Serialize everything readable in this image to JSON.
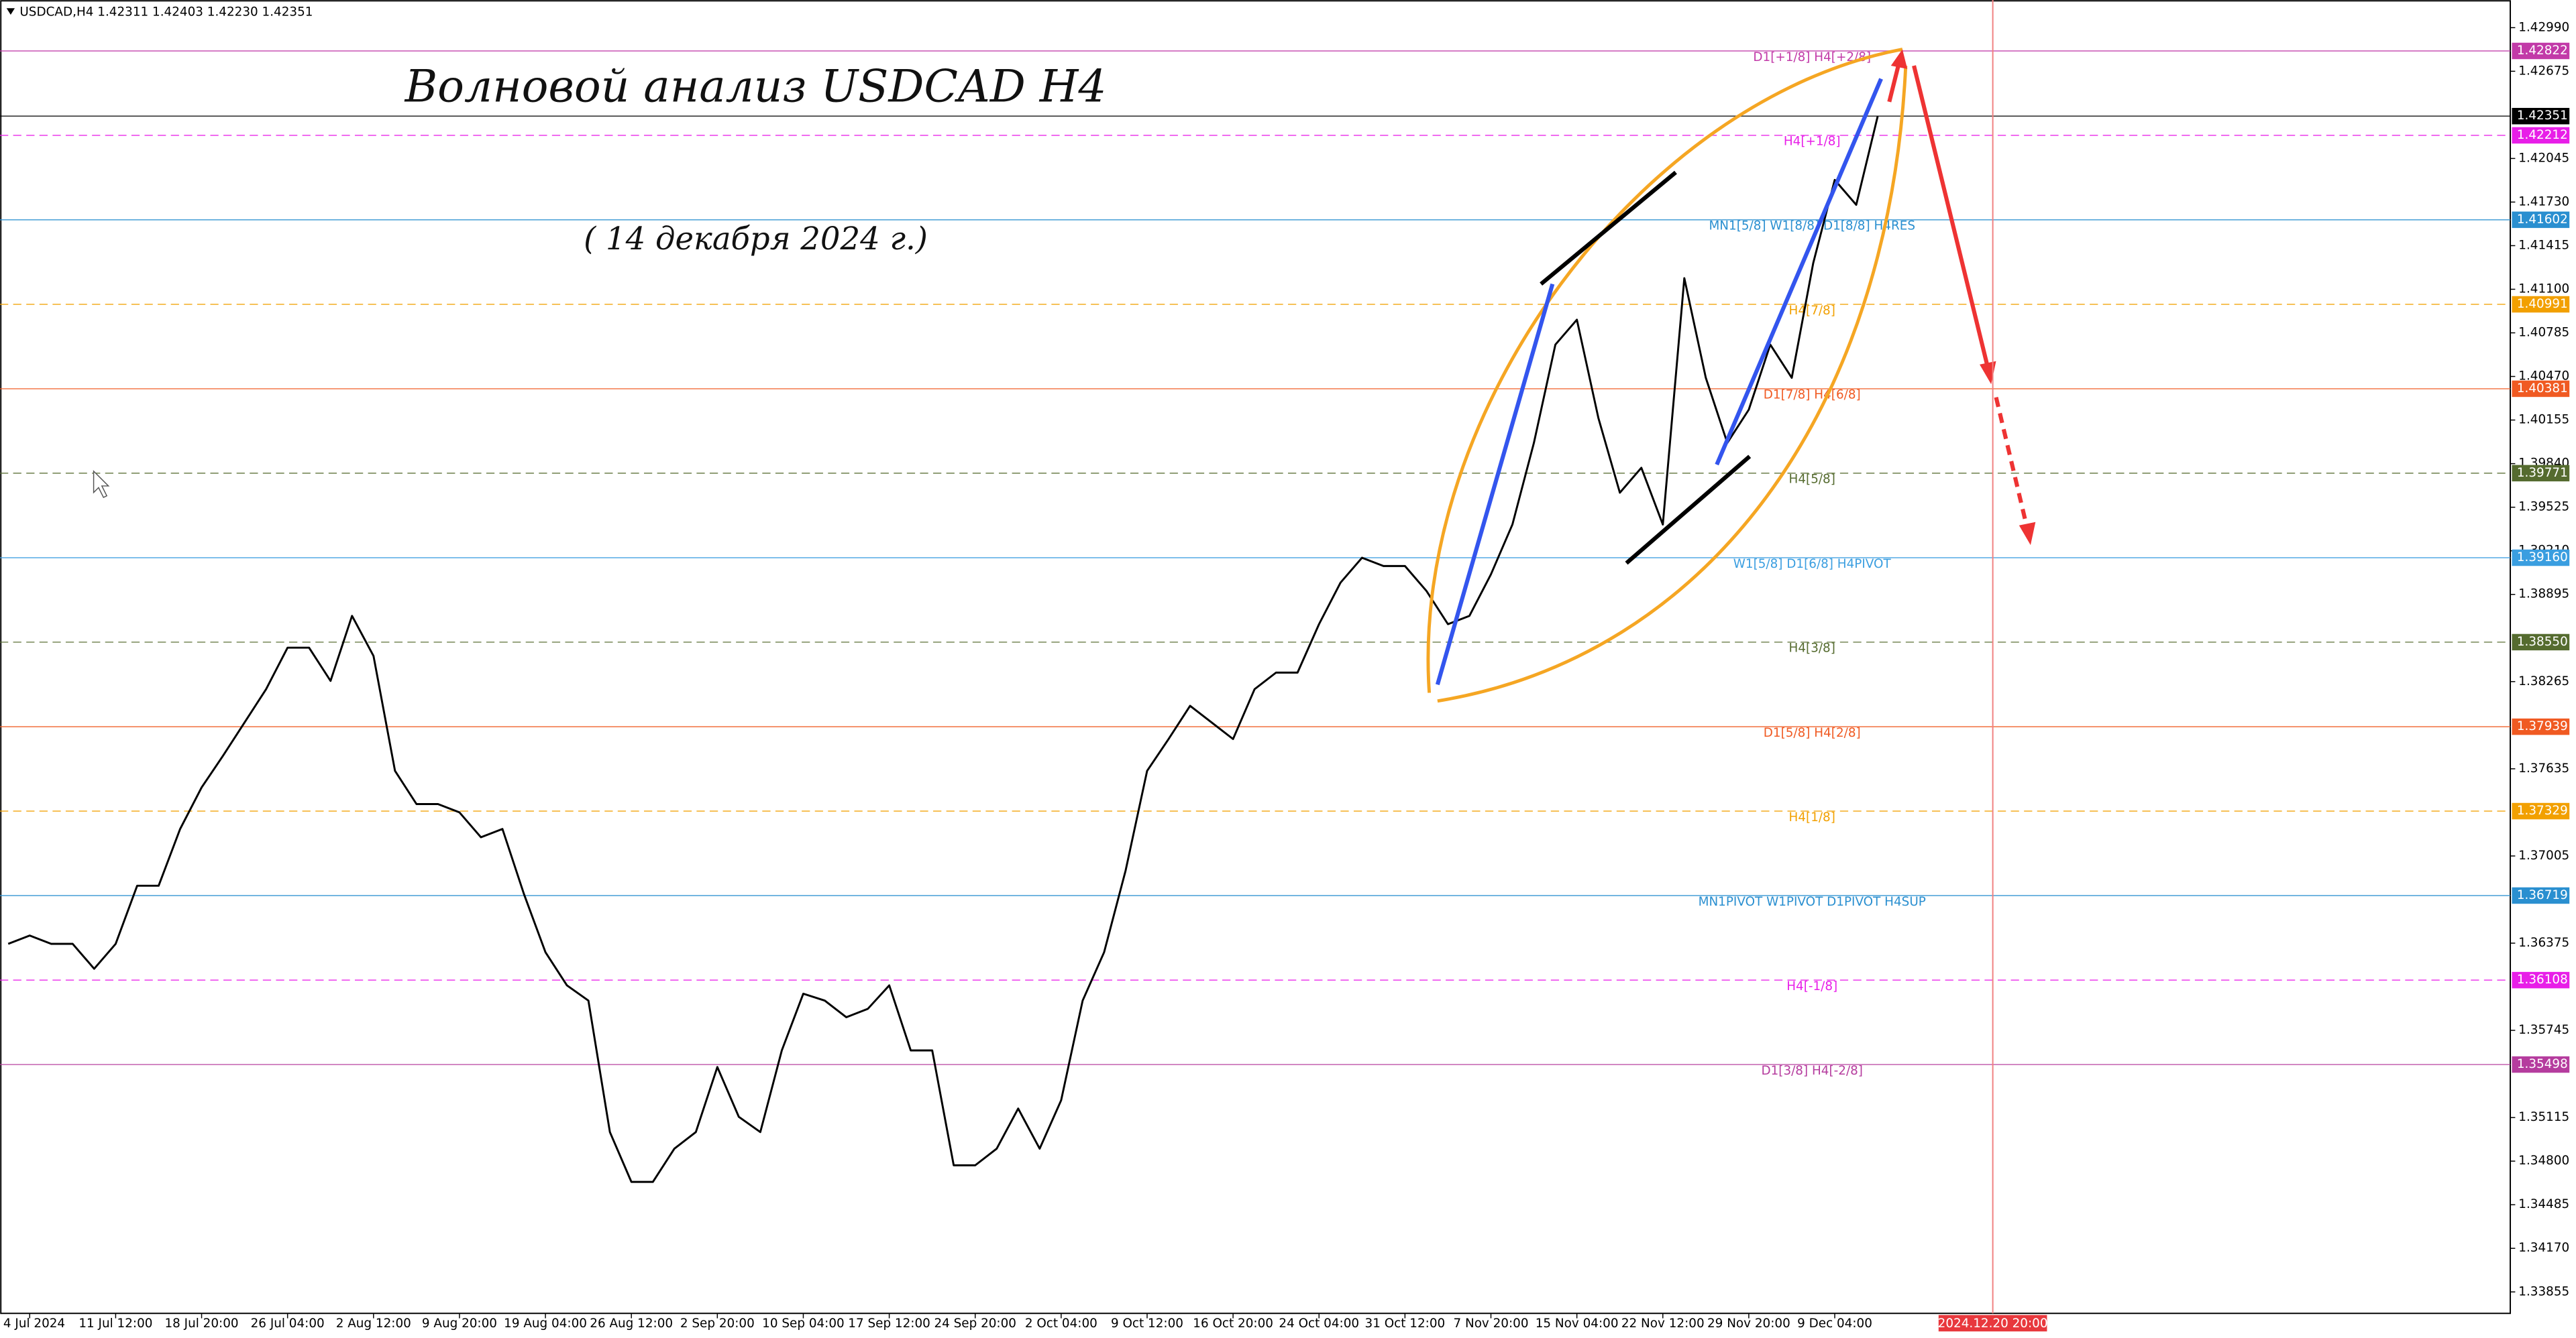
{
  "chart_data": {
    "type": "line",
    "header": "USDCAD,H4  1.42311 1.42403 1.42230 1.42351",
    "title": "Волновой анализ USDCAD H4",
    "subtitle": "( 14 декабря 2024 г.)",
    "future_time_label": "2024.12.20 20:00",
    "categories": [
      null,
      "4 Jul 2024",
      null,
      null,
      null,
      "11 Jul 12:00",
      null,
      null,
      null,
      "18 Jul 20:00",
      null,
      null,
      null,
      "26 Jul 04:00",
      null,
      null,
      null,
      "2 Aug 12:00",
      null,
      null,
      null,
      "9 Aug 20:00",
      null,
      null,
      null,
      "19 Aug 04:00",
      null,
      null,
      null,
      "26 Aug 12:00",
      null,
      null,
      null,
      "2 Sep 20:00",
      null,
      null,
      null,
      "10 Sep 04:00",
      null,
      null,
      null,
      "17 Sep 12:00",
      null,
      null,
      null,
      "24 Sep 20:00",
      null,
      null,
      null,
      "2 Oct 04:00",
      null,
      null,
      null,
      "9 Oct 12:00",
      null,
      null,
      null,
      "16 Oct 20:00",
      null,
      null,
      null,
      "24 Oct 04:00",
      null,
      null,
      null,
      "31 Oct 12:00",
      null,
      null,
      null,
      "7 Nov 20:00",
      null,
      null,
      null,
      "15 Nov 04:00",
      null,
      null,
      null,
      "22 Nov 12:00",
      null,
      null,
      null,
      "29 Nov 20:00",
      null,
      null,
      null,
      "9 Dec 04:00",
      null,
      null
    ],
    "series": [
      {
        "name": "USDCAD",
        "color": "#000000",
        "values": [
          1.3637,
          1.3643,
          1.3637,
          1.3637,
          1.3619,
          1.3637,
          1.3679,
          1.3679,
          1.372,
          1.375,
          1.3773,
          1.3797,
          1.3821,
          1.3851,
          1.3851,
          1.3827,
          1.3874,
          1.3845,
          1.3762,
          1.3738,
          1.3738,
          1.3732,
          1.3714,
          1.372,
          1.3673,
          1.3631,
          1.3607,
          1.3596,
          1.3501,
          1.3465,
          1.3465,
          1.3489,
          1.3501,
          1.3548,
          1.3512,
          1.3501,
          1.356,
          1.3601,
          1.3596,
          1.3584,
          1.359,
          1.3607,
          1.356,
          1.356,
          1.3477,
          1.3477,
          1.3489,
          1.3518,
          1.3489,
          1.3524,
          1.3596,
          1.3631,
          1.369,
          1.3762,
          1.3785,
          1.3809,
          1.3797,
          1.3785,
          1.3821,
          1.3833,
          1.3833,
          1.3868,
          1.3898,
          1.3916,
          1.391,
          1.391,
          1.3892,
          1.3868,
          1.3874,
          1.3904,
          1.394,
          1.3999,
          1.407,
          1.4088,
          1.4017,
          1.3963,
          1.3981,
          1.394,
          1.4118,
          1.4046,
          1.3999,
          1.4023,
          1.407,
          1.4046,
          1.4129,
          1.4189,
          1.4171,
          1.42351
        ]
      }
    ],
    "ylim": [
      1.337,
      1.4319
    ],
    "yticks": [
      {
        "value": 1.4299,
        "label": "1.42990"
      },
      1.42675,
      1.42045,
      {
        "value": 1.4173,
        "label": "1.41730"
      },
      1.41415,
      {
        "value": 1.411,
        "label": "1.41100"
      },
      1.40785,
      {
        "value": 1.4047,
        "label": "1.40470"
      },
      1.40155,
      {
        "value": 1.3984,
        "label": "1.39840"
      },
      1.39525,
      {
        "value": 1.3921,
        "label": "1.39210"
      },
      1.38895,
      1.38265,
      1.37635,
      1.37005,
      1.36375,
      1.35745,
      1.35115,
      {
        "value": 1.348,
        "label": "1.34800"
      },
      1.34485,
      {
        "value": 1.3417,
        "label": "1.34170"
      },
      1.33855
    ],
    "levels": [
      {
        "price": 1.42822,
        "color": "#c23aa8",
        "dashed": false,
        "text": "D1[+1/8] H4[+2/8]"
      },
      {
        "price": 1.42351,
        "color": "#000000",
        "dashed": false
      },
      {
        "price": 1.42212,
        "color": "#e81ee8",
        "dashed": true,
        "text": "H4[+1/8]"
      },
      {
        "price": 1.41602,
        "color": "#2a8fd0",
        "dashed": false,
        "text": "MN1[5/8] W1[8/8] D1[8/8] H4RES"
      },
      {
        "price": 1.40991,
        "color": "#f2a000",
        "dashed": true,
        "text": "H4[7/8]"
      },
      {
        "price": 1.40381,
        "color": "#f05a22",
        "dashed": false,
        "text": "D1[7/8] H4[6/8]"
      },
      {
        "price": 1.39771,
        "color": "#556b2f",
        "dashed": true,
        "text": "H4[5/8]"
      },
      {
        "price": 1.3916,
        "price_label": "1.39160",
        "color": "#3a9ee0",
        "dashed": false,
        "text": "W1[5/8] D1[6/8] H4PIVOT"
      },
      {
        "price": 1.3855,
        "price_label": "1.38550",
        "color": "#556b2f",
        "dashed": true,
        "text": "H4[3/8]"
      },
      {
        "price": 1.37939,
        "color": "#f05a22",
        "dashed": false,
        "text": "D1[5/8] H4[2/8]"
      },
      {
        "price": 1.37329,
        "color": "#f2a000",
        "dashed": true,
        "text": "H4[1/8]"
      },
      {
        "price": 1.36719,
        "color": "#2a8fd0",
        "dashed": false,
        "text": "MN1PIVOT W1PIVOT D1PIVOT H4SUP"
      },
      {
        "price": 1.36108,
        "color": "#e81ee8",
        "dashed": true,
        "text": "H4[-1/8]"
      },
      {
        "price": 1.35498,
        "color": "#b53c9e",
        "dashed": false,
        "text": "D1[3/8] H4[-2/8]"
      }
    ]
  }
}
